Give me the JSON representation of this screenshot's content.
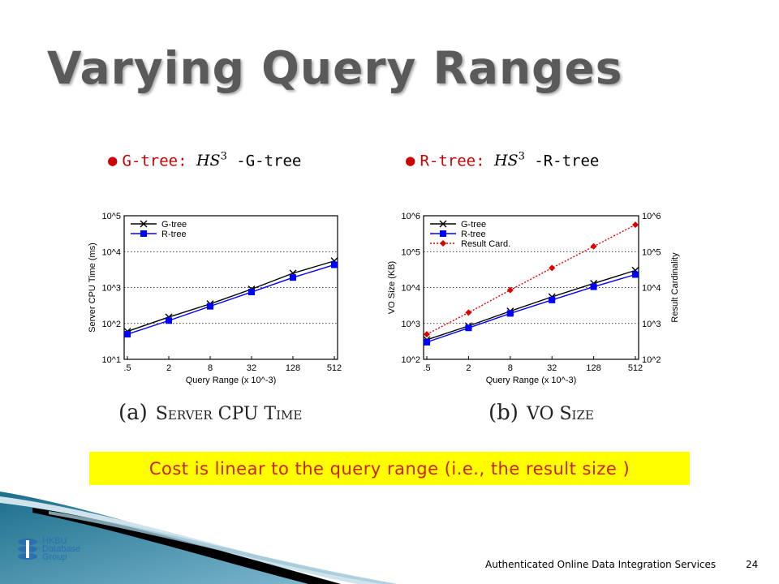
{
  "slide": {
    "title": "Varying Query Ranges",
    "bullets": [
      {
        "label": "G-tree:",
        "math_base": "HS",
        "math_sup": "3",
        "suffix": " -G-tree"
      },
      {
        "label": "R-tree:",
        "math_base": "HS",
        "math_sup": "3",
        "suffix": " -R-tree"
      }
    ],
    "captions": [
      {
        "prefix": "(a)",
        "text": "Server CPU Time"
      },
      {
        "prefix": "(b)",
        "text": "VO Size"
      }
    ],
    "highlight": "Cost is linear to the query range (i.e., the result size )",
    "footer": "Authenticated Online Data Integration Services",
    "page_number": "24",
    "logo_lines": [
      "HKBU",
      "Database",
      "Group"
    ],
    "colors": {
      "title": "#5a5a5a",
      "accent": "#cc0000",
      "highlight_bg": "#ffff00",
      "highlight_text": "#cc2200",
      "gtree": "#000000",
      "rtree": "#0000ff",
      "result": "#dd0000"
    }
  },
  "chart_data": [
    {
      "type": "line",
      "title": "",
      "xlabel": "Query Range (x 10^-3)",
      "ylabel": "Server CPU Time (ms)",
      "log_y": true,
      "ylim_exp": [
        1,
        5
      ],
      "ytick_labels": [
        "10^1",
        "10^2",
        "10^3",
        "10^4",
        "10^5"
      ],
      "categories": [
        ".5",
        "2",
        "8",
        "32",
        "128",
        "512"
      ],
      "grid": "horizontal dotted",
      "legend": "top-left",
      "series": [
        {
          "name": "G-tree",
          "marker": "x",
          "color": "#000000",
          "dash": false,
          "values": [
            60,
            150,
            350,
            900,
            2500,
            5500
          ]
        },
        {
          "name": "R-tree",
          "marker": "square",
          "color": "#0000ff",
          "dash": false,
          "values": [
            50,
            120,
            300,
            750,
            1900,
            4300
          ]
        }
      ]
    },
    {
      "type": "line",
      "title": "",
      "xlabel": "Query Range (x 10^-3)",
      "ylabel": "VO Size (KB)",
      "ylabel_right": "Result Cardinality",
      "log_y": true,
      "ylim_exp": [
        2,
        6
      ],
      "ytick_labels": [
        "10^2",
        "10^3",
        "10^4",
        "10^5",
        "10^6"
      ],
      "categories": [
        ".5",
        "2",
        "8",
        "32",
        "128",
        "512"
      ],
      "grid": "horizontal dotted",
      "legend": "top-left",
      "series": [
        {
          "name": "G-tree",
          "marker": "x",
          "color": "#000000",
          "dash": false,
          "values": [
            350,
            850,
            2200,
            5500,
            13000,
            30000
          ]
        },
        {
          "name": "R-tree",
          "marker": "square",
          "color": "#0000ff",
          "dash": false,
          "values": [
            300,
            750,
            1900,
            4500,
            10500,
            23000
          ]
        },
        {
          "name": "Result Card.",
          "marker": "diamond",
          "color": "#dd0000",
          "dash": true,
          "values": [
            500,
            2000,
            8500,
            35000,
            140000,
            560000
          ]
        }
      ]
    }
  ]
}
